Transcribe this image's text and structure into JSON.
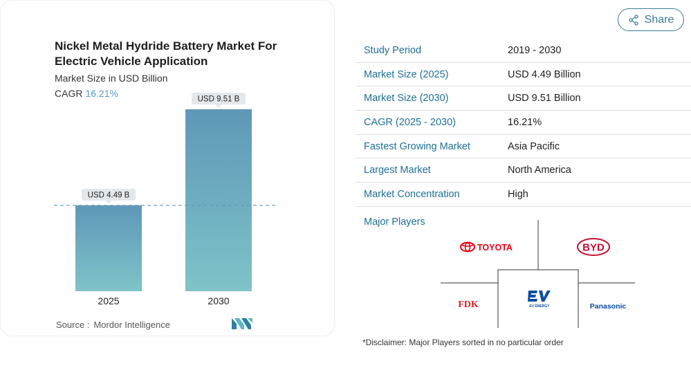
{
  "chart_title": "Nickel Metal Hydride Battery Market For Electric Vehicle Application",
  "chart_subtitle": "Market Size in USD Billion",
  "cagr_label": "CAGR",
  "cagr_value": "16.21%",
  "chart_data": {
    "type": "bar",
    "categories": [
      "2025",
      "2030"
    ],
    "values": [
      4.49,
      9.51
    ],
    "data_labels": [
      "USD 4.49 B",
      "USD 9.51 B"
    ],
    "title": "Nickel Metal Hydride Battery Market For Electric Vehicle Application",
    "subtitle": "Market Size in USD Billion",
    "xlabel": "",
    "ylabel": "",
    "ylim": [
      0,
      10
    ],
    "grid": false,
    "reference_line": 4.49,
    "bar_colors": [
      "#5f97b8",
      "#7ec4c8"
    ]
  },
  "source_label": "Source :",
  "source_value": "Mordor Intelligence",
  "share_label": "Share",
  "info_rows": [
    {
      "key": "Study Period",
      "value": "2019 - 2030"
    },
    {
      "key": "Market Size (2025)",
      "value": "USD 4.49 Billion"
    },
    {
      "key": "Market Size (2030)",
      "value": "USD 9.51 Billion"
    },
    {
      "key": "CAGR (2025 - 2030)",
      "value": "16.21%"
    },
    {
      "key": "Fastest Growing Market",
      "value": "Asia Pacific"
    },
    {
      "key": "Largest Market",
      "value": "North America"
    },
    {
      "key": "Market Concentration",
      "value": "High"
    }
  ],
  "major_players_label": "Major Players",
  "players": [
    "TOYOTA",
    "BYD",
    "FDK",
    "EV ENERGY",
    "Panasonic"
  ],
  "disclaimer": "*Disclaimer: Major Players sorted in no particular order",
  "colors": {
    "accent": "#1f6f95",
    "toyota": "#e60012",
    "byd": "#c8102e",
    "fdk": "#d2232a",
    "ev": "#0b4ea2",
    "panasonic": "#0b4ea2"
  }
}
